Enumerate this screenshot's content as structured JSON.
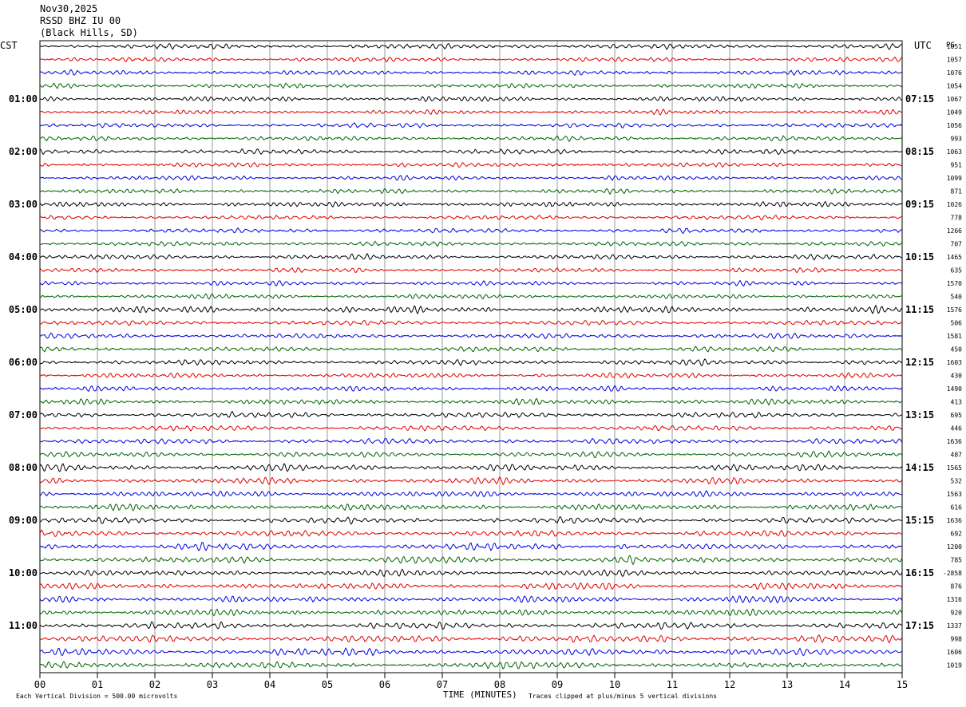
{
  "header": {
    "date": "Nov30,2025",
    "station": "RSSD BHZ IU 00",
    "location": "(Black Hills, SD)"
  },
  "left_timezone": "CST",
  "right_timezone": "UTC",
  "right_column_label": "PG",
  "footer": {
    "scale_note": "Each Vertical Division =  500.00 microvolts",
    "clip_note": "Traces clipped at plus/minus 5 vertical divisions"
  },
  "chart_data": {
    "type": "line",
    "title": "",
    "xlabel": "TIME (MINUTES)",
    "ylabel": "",
    "x_ticks": [
      "00",
      "01",
      "02",
      "03",
      "04",
      "05",
      "06",
      "07",
      "08",
      "09",
      "10",
      "11",
      "12",
      "13",
      "14",
      "15"
    ],
    "xlim": [
      0,
      15
    ],
    "grid": true,
    "row_count": 48,
    "row_minutes": 15,
    "trace_colors": [
      "#000000",
      "#e00000",
      "#0000e0",
      "#006400"
    ],
    "left_hour_labels": [
      "01:00",
      "02:00",
      "03:00",
      "04:00",
      "05:00",
      "06:00",
      "07:00",
      "08:00",
      "09:00",
      "10:00",
      "11:00"
    ],
    "right_hour_labels": [
      "07:15",
      "08:15",
      "09:15",
      "10:15",
      "11:15",
      "12:15",
      "13:15",
      "14:15",
      "15:15",
      "16:15",
      "17:15"
    ],
    "row_offsets": [
      "1051",
      "1057",
      "1076",
      "1054",
      "1067",
      "1049",
      "1056",
      "993",
      "1063",
      "951",
      "1099",
      "871",
      "1026",
      "778",
      "1266",
      "707",
      "1465",
      "635",
      "1570",
      "540",
      "1576",
      "506",
      "1581",
      "450",
      "1603",
      "430",
      "1490",
      "413",
      "695",
      "446",
      "1636",
      "487",
      "1565",
      "532",
      "1563",
      "616",
      "1636",
      "692",
      "1200",
      "785",
      "-2858",
      "876",
      "1316",
      "920",
      "1337",
      "998",
      "1606",
      "1019"
    ],
    "row_amplitude": [
      0.9,
      0.8,
      0.8,
      0.8,
      0.9,
      0.8,
      0.8,
      0.8,
      0.9,
      0.8,
      0.8,
      0.8,
      0.9,
      0.8,
      0.8,
      0.8,
      0.9,
      0.8,
      0.8,
      0.8,
      1.2,
      0.9,
      0.9,
      0.9,
      1.0,
      0.9,
      0.9,
      1.0,
      1.0,
      1.0,
      1.0,
      1.0,
      1.2,
      1.1,
      1.1,
      1.1,
      1.1,
      1.1,
      1.2,
      1.2,
      1.1,
      1.2,
      1.2,
      1.2,
      1.2,
      1.3,
      1.3,
      1.2
    ],
    "events": [
      {
        "row": 45,
        "start_min": 8.0,
        "end_min": 9.3,
        "amplitude": 2.0
      },
      {
        "row": 38,
        "start_min": 2.6,
        "end_min": 3.2,
        "amplitude": 1.8
      },
      {
        "row": 39,
        "start_min": 1.7,
        "end_min": 2.1,
        "amplitude": 1.6
      },
      {
        "row": 38,
        "start_min": 10.0,
        "end_min": 10.5,
        "amplitude": 1.5
      },
      {
        "row": 39,
        "start_min": 10.1,
        "end_min": 10.6,
        "amplitude": 1.6
      }
    ]
  }
}
